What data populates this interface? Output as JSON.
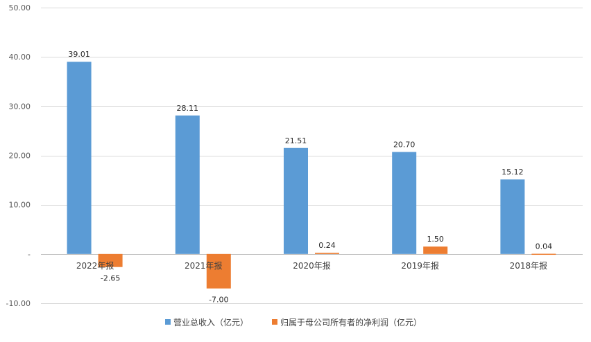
{
  "chart_data": {
    "type": "bar",
    "categories": [
      "2022年报",
      "2021年报",
      "2020年报",
      "2019年报",
      "2018年报"
    ],
    "series": [
      {
        "name": "营业总收入（亿元）",
        "values": [
          39.01,
          28.11,
          21.51,
          20.7,
          15.12
        ],
        "labels": [
          "39.01",
          "28.11",
          "21.51",
          "20.70",
          "15.12"
        ],
        "color": "#5B9BD5"
      },
      {
        "name": "归属于母公司所有者的净利润（亿元）",
        "values": [
          -2.65,
          -7.0,
          0.24,
          1.5,
          0.04
        ],
        "labels": [
          "-2.65",
          "-7.00",
          "0.24",
          "1.50",
          "0.04"
        ],
        "color": "#ED7D31"
      }
    ],
    "ylim": [
      -10,
      50
    ],
    "yticks": [
      50,
      40,
      30,
      20,
      10,
      0,
      -10
    ],
    "ytick_labels": [
      "50.00",
      "40.00",
      "30.00",
      "20.00",
      "10.00",
      "-",
      "-10.00"
    ],
    "grid": true,
    "grid_color": "#D9D9D9",
    "legend_position": "bottom",
    "title": "",
    "xlabel": "",
    "ylabel": ""
  }
}
